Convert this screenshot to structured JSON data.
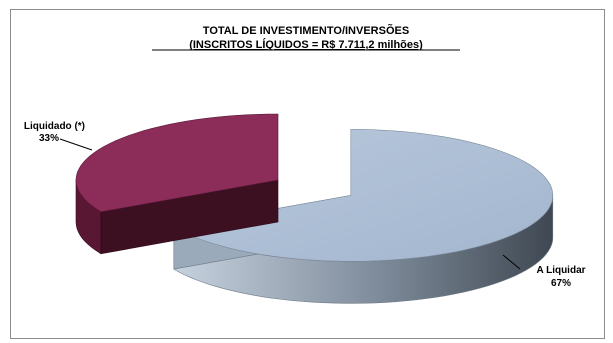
{
  "chart_data": {
    "type": "pie",
    "title": "TOTAL DE INVESTIMENTO/INVERSÕES",
    "subtitle": "(INSCRITOS LÍQUIDOS = R$ 7.711,2 milhões)",
    "slices": [
      {
        "label": "Liquidado (*)",
        "value": 33,
        "percent_label": "33%",
        "color": "#8c2c59"
      },
      {
        "label": "A Liquidar",
        "value": 67,
        "percent_label": "67%",
        "color": "#a9bdd6"
      }
    ],
    "exploded": true,
    "three_d": true,
    "legend": "none"
  }
}
